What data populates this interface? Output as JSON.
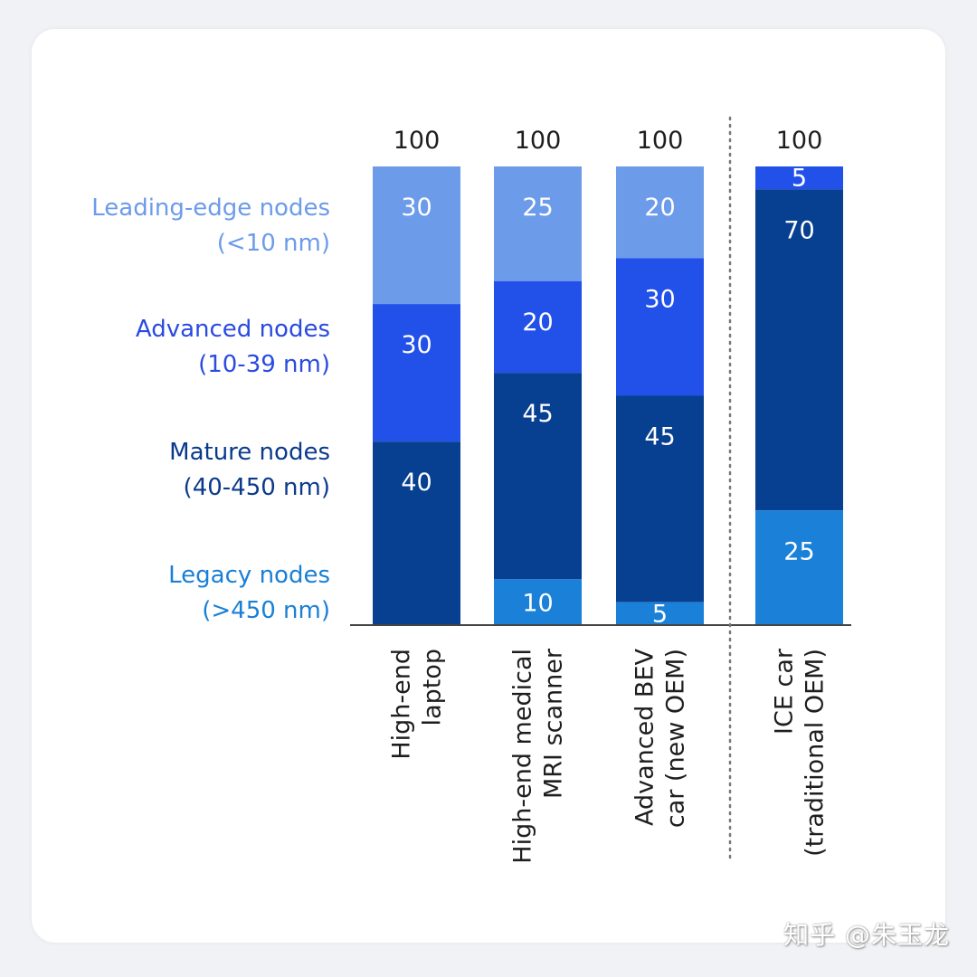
{
  "chart_data": {
    "type": "bar",
    "stacked": true,
    "categories": [
      [
        "High-end",
        "laptop"
      ],
      [
        "High-end medical",
        "MRI scanner"
      ],
      [
        "Advanced BEV",
        "car (new OEM)"
      ],
      [
        "ICE car",
        "(traditional OEM)"
      ]
    ],
    "totals": [
      "100",
      "100",
      "100",
      "100"
    ],
    "series": [
      {
        "name": "Leading-edge nodes (<10 nm)",
        "label_lines": [
          "Leading-edge nodes",
          "(<10 nm)"
        ],
        "color": "#6c9bea",
        "label_color": "#6c9bea",
        "values": [
          30,
          25,
          20,
          0
        ]
      },
      {
        "name": "Advanced nodes (10-39 nm)",
        "label_lines": [
          "Advanced nodes",
          "(10-39 nm)"
        ],
        "color": "#2251ea",
        "label_color": "#2a4ae0",
        "values": [
          30,
          20,
          30,
          5
        ]
      },
      {
        "name": "Mature nodes (40-450 nm)",
        "label_lines": [
          "Mature nodes",
          "(40-450 nm)"
        ],
        "color": "#073f91",
        "label_color": "#0b3a8c",
        "values": [
          40,
          45,
          45,
          70
        ]
      },
      {
        "name": "Legacy nodes (>450 nm)",
        "label_lines": [
          "Legacy nodes",
          "(>450 nm)"
        ],
        "color": "#1a80d8",
        "label_color": "#1a7fd6",
        "values": [
          0,
          10,
          5,
          25
        ]
      }
    ],
    "ylim": [
      0,
      100
    ],
    "separator": "dotted line between third and fourth bars",
    "grid": false,
    "legend": "left"
  },
  "watermark": "知乎 @朱玉龙"
}
